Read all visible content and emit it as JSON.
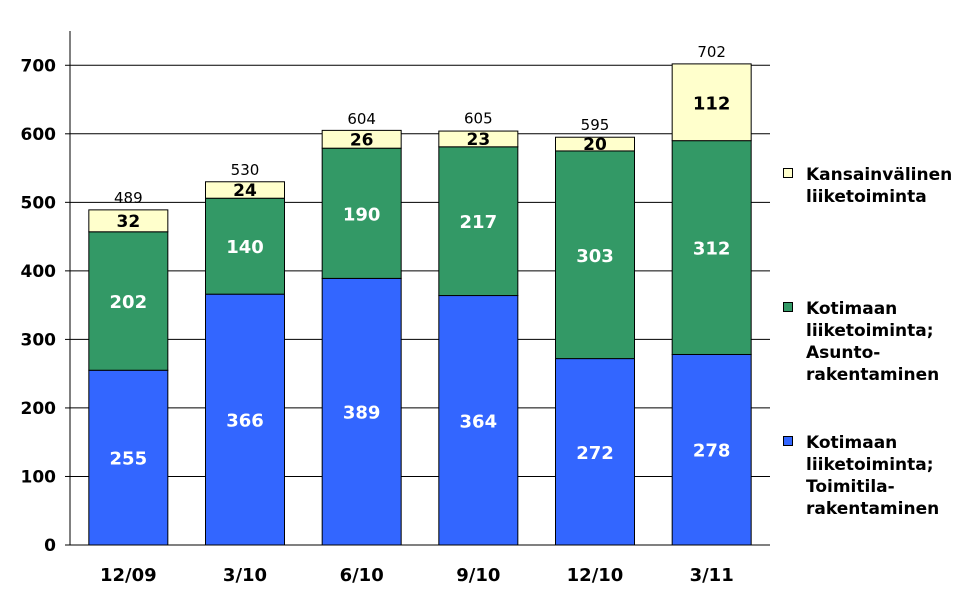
{
  "chart_data": {
    "type": "bar",
    "stacked": true,
    "categories": [
      "12/09",
      "3/10",
      "6/10",
      "9/10",
      "12/10",
      "3/11"
    ],
    "ylim": [
      0,
      750
    ],
    "yticks": [
      0,
      100,
      200,
      300,
      400,
      500,
      600,
      700
    ],
    "grid": true,
    "legend_position": "right",
    "series": [
      {
        "name": "Kotimaan\nliiketoiminta;\nToimitila-\nrakentaminen",
        "color": "#3366ff",
        "label_color": "#ffffff",
        "values": [
          255,
          366,
          389,
          364,
          272,
          278
        ]
      },
      {
        "name": "Kotimaan\nliiketoiminta;\nAsunto-\nrakentaminen",
        "color": "#339966",
        "label_color": "#ffffff",
        "values": [
          202,
          140,
          190,
          217,
          303,
          312
        ]
      },
      {
        "name": "Kansainvälinen\nliiketoiminta",
        "color": "#ffffcc",
        "label_color": "#000000",
        "values": [
          32,
          24,
          26,
          23,
          20,
          112
        ]
      }
    ],
    "totals": [
      489,
      530,
      604,
      605,
      595,
      702
    ]
  }
}
